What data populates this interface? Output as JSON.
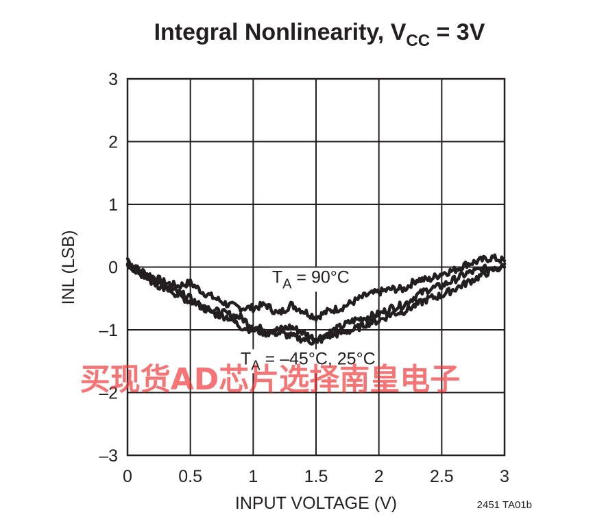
{
  "chart_data": {
    "type": "line",
    "title": "Integral Nonlinearity, V",
    "title_sub": "CC",
    "title_tail": " = 3V",
    "xlabel": "INPUT VOLTAGE (V)",
    "ylabel": "INL (LSB)",
    "xlim": [
      0,
      3
    ],
    "ylim": [
      -3,
      3
    ],
    "grid": true,
    "x_ticks": [
      0,
      0.5,
      1,
      1.5,
      2,
      2.5,
      3
    ],
    "x_tick_labels": [
      "0",
      "0.5",
      "1",
      "1.5",
      "2",
      "2.5",
      "3"
    ],
    "y_ticks": [
      3,
      2,
      1,
      0,
      -1,
      -2,
      -3
    ],
    "y_tick_labels": [
      "3",
      "2",
      "1",
      "0",
      "–1",
      "–2",
      "–3"
    ],
    "annotations": [
      {
        "text": "T",
        "sub": "A",
        "tail": " = 90°C",
        "x": 1.15,
        "y": -0.25
      },
      {
        "text": "T",
        "sub": "A",
        "tail": " = –45°C, 25°C",
        "x": 0.9,
        "y": -1.55
      }
    ],
    "series": [
      {
        "x": [
          0,
          0.1,
          0.2,
          0.3,
          0.4,
          0.5,
          0.6,
          0.7,
          0.8,
          0.9,
          1.0,
          1.1,
          1.2,
          1.3,
          1.4,
          1.5,
          1.6,
          1.7,
          1.8,
          1.9,
          2.0,
          2.1,
          2.2,
          2.3,
          2.4,
          2.5,
          2.6,
          2.7,
          2.8,
          2.9,
          3.0
        ],
        "y": [
          0.05,
          -0.05,
          -0.15,
          -0.25,
          -0.3,
          -0.25,
          -0.4,
          -0.5,
          -0.6,
          -0.65,
          -0.65,
          -0.6,
          -0.75,
          -0.6,
          -0.7,
          -0.8,
          -0.7,
          -0.65,
          -0.55,
          -0.45,
          -0.4,
          -0.35,
          -0.35,
          -0.2,
          -0.2,
          -0.1,
          -0.05,
          0.05,
          0.1,
          0.15,
          0.1
        ]
      },
      {
        "x": [
          0,
          0.1,
          0.2,
          0.3,
          0.4,
          0.5,
          0.6,
          0.7,
          0.8,
          0.9,
          1.0,
          1.1,
          1.2,
          1.3,
          1.4,
          1.5,
          1.6,
          1.7,
          1.8,
          1.9,
          2.0,
          2.1,
          2.2,
          2.3,
          2.4,
          2.5,
          2.6,
          2.7,
          2.8,
          2.9,
          3.0
        ],
        "y": [
          0.1,
          -0.1,
          -0.2,
          -0.3,
          -0.45,
          -0.55,
          -0.6,
          -0.7,
          -0.75,
          -0.8,
          -0.95,
          -1.0,
          -1.0,
          -0.95,
          -1.05,
          -1.15,
          -1.05,
          -0.95,
          -0.85,
          -0.8,
          -0.75,
          -0.65,
          -0.6,
          -0.45,
          -0.35,
          -0.3,
          -0.2,
          -0.1,
          -0.05,
          0.0,
          0.05
        ]
      },
      {
        "x": [
          0,
          0.1,
          0.2,
          0.3,
          0.4,
          0.5,
          0.6,
          0.7,
          0.8,
          0.9,
          1.0,
          1.1,
          1.2,
          1.3,
          1.4,
          1.5,
          1.6,
          1.7,
          1.8,
          1.9,
          2.0,
          2.1,
          2.2,
          2.3,
          2.4,
          2.5,
          2.6,
          2.7,
          2.8,
          2.9,
          3.0
        ],
        "y": [
          0.05,
          -0.1,
          -0.25,
          -0.35,
          -0.4,
          -0.5,
          -0.65,
          -0.75,
          -0.8,
          -0.95,
          -1.0,
          -1.05,
          -1.05,
          -1.1,
          -1.15,
          -1.2,
          -1.1,
          -1.05,
          -1.0,
          -0.9,
          -0.85,
          -0.75,
          -0.7,
          -0.6,
          -0.5,
          -0.45,
          -0.35,
          -0.25,
          -0.15,
          -0.05,
          0.0
        ]
      }
    ]
  },
  "figure_code": "2451 TA01b",
  "watermark": "买现货AD芯片选择南皇电子"
}
